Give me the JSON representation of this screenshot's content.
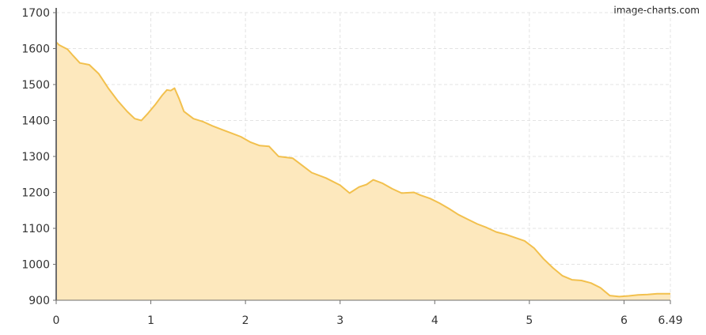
{
  "watermark": "image-charts.com",
  "colors": {
    "fill": "#fde8bd",
    "line": "#f2c04d",
    "grid": "#e3e3e3",
    "axis": "#6e6e6e",
    "tick_text": "#333333"
  },
  "chart_data": {
    "type": "area",
    "title": "",
    "xlabel": "",
    "ylabel": "",
    "xlim": [
      0,
      6.49
    ],
    "ylim": [
      900,
      1700
    ],
    "x_ticks": [
      {
        "value": 0,
        "label": "0"
      },
      {
        "value": 1,
        "label": "1"
      },
      {
        "value": 2,
        "label": "2"
      },
      {
        "value": 3,
        "label": "3"
      },
      {
        "value": 4,
        "label": "4"
      },
      {
        "value": 5,
        "label": "5"
      },
      {
        "value": 6,
        "label": "6"
      },
      {
        "value": 6.49,
        "label": "6.49"
      }
    ],
    "y_ticks": [
      {
        "value": 900,
        "label": "900"
      },
      {
        "value": 1000,
        "label": "1000"
      },
      {
        "value": 1100,
        "label": "1100"
      },
      {
        "value": 1200,
        "label": "1200"
      },
      {
        "value": 1300,
        "label": "1300"
      },
      {
        "value": 1400,
        "label": "1400"
      },
      {
        "value": 1500,
        "label": "1500"
      },
      {
        "value": 1600,
        "label": "1600"
      },
      {
        "value": 1700,
        "label": "1700"
      }
    ],
    "grid": true,
    "legend": "none",
    "series": [
      {
        "x": [
          0,
          0.03,
          0.12,
          0.18,
          0.25,
          0.35,
          0.45,
          0.55,
          0.65,
          0.75,
          0.83,
          0.9,
          0.97,
          1.05,
          1.12,
          1.17,
          1.21,
          1.25,
          1.3,
          1.35,
          1.45,
          1.55,
          1.65,
          1.75,
          1.85,
          1.95,
          2.05,
          2.15,
          2.25,
          2.35,
          2.5,
          2.6,
          2.7,
          2.85,
          3.0,
          3.1,
          3.2,
          3.28,
          3.35,
          3.45,
          3.55,
          3.65,
          3.78,
          3.85,
          3.95,
          4.05,
          4.15,
          4.25,
          4.35,
          4.45,
          4.55,
          4.65,
          4.75,
          4.85,
          4.95,
          5.05,
          5.15,
          5.25,
          5.35,
          5.45,
          5.55,
          5.65,
          5.75,
          5.85,
          5.95,
          6.05,
          6.15,
          6.25,
          6.35,
          6.49
        ],
        "y": [
          1618,
          1610,
          1598,
          1580,
          1560,
          1555,
          1530,
          1490,
          1455,
          1425,
          1405,
          1400,
          1420,
          1445,
          1470,
          1485,
          1483,
          1490,
          1460,
          1425,
          1405,
          1397,
          1385,
          1375,
          1365,
          1355,
          1340,
          1330,
          1328,
          1300,
          1295,
          1275,
          1255,
          1240,
          1220,
          1198,
          1215,
          1222,
          1235,
          1225,
          1210,
          1198,
          1200,
          1192,
          1183,
          1170,
          1155,
          1138,
          1125,
          1112,
          1102,
          1090,
          1083,
          1074,
          1065,
          1045,
          1015,
          990,
          968,
          957,
          955,
          948,
          935,
          913,
          910,
          912,
          915,
          916,
          918,
          918
        ]
      }
    ]
  }
}
